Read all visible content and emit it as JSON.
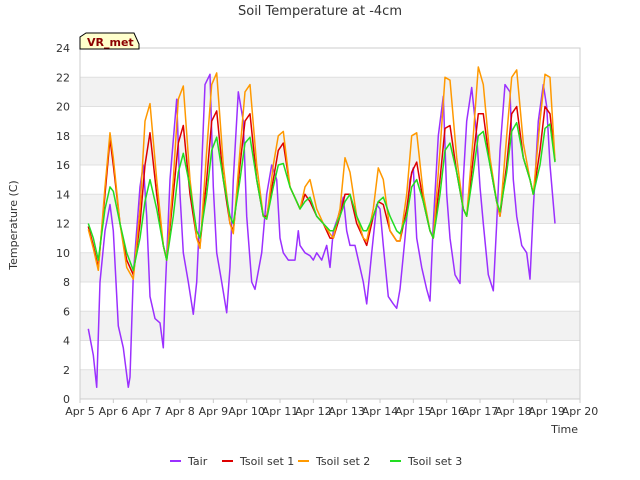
{
  "chart_data": {
    "type": "line",
    "title": "Soil Temperature at -4cm",
    "xlabel": "Time",
    "ylabel": "Temperature (C)",
    "badge": "VR_met",
    "xlim": [
      5,
      20
    ],
    "ylim": [
      0,
      24
    ],
    "x_ticks": [
      5,
      6,
      7,
      8,
      9,
      10,
      11,
      12,
      13,
      14,
      15,
      16,
      17,
      18,
      19,
      20
    ],
    "x_tick_labels": [
      "Apr 5",
      "Apr 6",
      "Apr 7",
      "Apr 8",
      "Apr 9",
      "Apr 10",
      "Apr 11",
      "Apr 12",
      "Apr 13",
      "Apr 14",
      "Apr 15",
      "Apr 16",
      "Apr 17",
      "Apr 18",
      "Apr 19",
      "Apr 20"
    ],
    "y_ticks": [
      0,
      2,
      4,
      6,
      8,
      10,
      12,
      14,
      16,
      18,
      20,
      22,
      24
    ],
    "grid": "horizontal bands",
    "legend_position": "bottom",
    "series": [
      {
        "name": "Tair",
        "color": "#9b30ff",
        "x": [
          5.25,
          5.4,
          5.5,
          5.6,
          5.75,
          5.9,
          6.0,
          6.15,
          6.3,
          6.45,
          6.5,
          6.6,
          6.8,
          6.9,
          7.0,
          7.1,
          7.25,
          7.4,
          7.5,
          7.55,
          7.7,
          7.9,
          8.0,
          8.1,
          8.25,
          8.4,
          8.5,
          8.6,
          8.75,
          8.9,
          9.0,
          9.1,
          9.25,
          9.4,
          9.5,
          9.6,
          9.75,
          9.9,
          10.0,
          10.15,
          10.25,
          10.45,
          10.6,
          10.75,
          10.9,
          11.0,
          11.1,
          11.25,
          11.45,
          11.55,
          11.6,
          11.75,
          11.9,
          12.0,
          12.1,
          12.25,
          12.4,
          12.5,
          12.6,
          12.75,
          12.9,
          13.0,
          13.1,
          13.25,
          13.4,
          13.5,
          13.6,
          13.75,
          13.9,
          14.0,
          14.1,
          14.25,
          14.4,
          14.5,
          14.6,
          14.75,
          14.9,
          15.0,
          15.1,
          15.25,
          15.4,
          15.5,
          15.6,
          15.75,
          15.9,
          16.0,
          16.1,
          16.25,
          16.4,
          16.5,
          16.6,
          16.75,
          16.9,
          17.0,
          17.1,
          17.25,
          17.4,
          17.5,
          17.6,
          17.75,
          17.9,
          18.0,
          18.1,
          18.25,
          18.4,
          18.5,
          18.6,
          18.75,
          18.9,
          19.0,
          19.1,
          19.25
        ],
        "y": [
          4.8,
          3.0,
          0.8,
          8.0,
          11.5,
          13.3,
          11.5,
          5.0,
          3.5,
          0.8,
          1.5,
          8.5,
          14.5,
          16.0,
          12.5,
          7.0,
          5.5,
          5.2,
          3.5,
          7.0,
          15.0,
          20.5,
          14.0,
          10.0,
          8.0,
          5.8,
          8.0,
          13.0,
          21.5,
          22.2,
          14.5,
          10.0,
          8.0,
          5.9,
          9.0,
          15.0,
          21.0,
          19.0,
          12.5,
          8.0,
          7.5,
          10.0,
          14.0,
          16.0,
          15.0,
          11.0,
          10.0,
          9.5,
          9.5,
          11.5,
          10.5,
          10.0,
          9.8,
          9.5,
          10.0,
          9.5,
          10.5,
          9.0,
          11.5,
          12.5,
          13.8,
          11.5,
          10.5,
          10.5,
          9.0,
          8.0,
          6.5,
          10.0,
          13.3,
          13.0,
          10.5,
          7.0,
          6.5,
          6.2,
          7.5,
          11.0,
          15.0,
          15.8,
          11.0,
          9.0,
          7.5,
          6.7,
          12.0,
          18.0,
          20.7,
          14.0,
          11.0,
          8.5,
          7.9,
          15.0,
          19.0,
          21.3,
          18.0,
          14.5,
          12.0,
          8.5,
          7.4,
          12.0,
          17.0,
          21.5,
          21.0,
          15.0,
          12.5,
          10.5,
          10.0,
          8.2,
          13.0,
          19.0,
          21.5,
          20.0,
          16.0,
          12.0
        ]
      },
      {
        "name": "Tsoil set 1",
        "color": "#dd0000",
        "x": [
          5.25,
          5.4,
          5.55,
          5.75,
          5.9,
          6.0,
          6.2,
          6.4,
          6.6,
          6.8,
          6.95,
          7.1,
          7.3,
          7.5,
          7.6,
          7.8,
          7.95,
          8.1,
          8.3,
          8.5,
          8.6,
          8.8,
          8.95,
          9.1,
          9.3,
          9.5,
          9.6,
          9.8,
          9.95,
          10.1,
          10.3,
          10.5,
          10.6,
          10.8,
          10.95,
          11.1,
          11.3,
          11.5,
          11.6,
          11.75,
          11.9,
          12.1,
          12.3,
          12.5,
          12.6,
          12.8,
          12.95,
          13.1,
          13.3,
          13.5,
          13.6,
          13.8,
          13.95,
          14.1,
          14.3,
          14.5,
          14.6,
          14.8,
          14.95,
          15.1,
          15.3,
          15.5,
          15.6,
          15.8,
          15.95,
          16.1,
          16.3,
          16.5,
          16.6,
          16.8,
          16.95,
          17.1,
          17.3,
          17.5,
          17.6,
          17.8,
          17.95,
          18.1,
          18.3,
          18.5,
          18.6,
          18.8,
          18.95,
          19.1,
          19.25
        ],
        "y": [
          11.8,
          10.5,
          9.0,
          14.0,
          17.8,
          16.0,
          12.0,
          9.5,
          8.5,
          12.0,
          16.0,
          18.2,
          14.0,
          10.5,
          9.5,
          14.0,
          17.5,
          18.7,
          14.0,
          11.0,
          10.5,
          15.0,
          19.0,
          19.7,
          15.0,
          12.0,
          11.5,
          16.0,
          19.0,
          19.5,
          15.0,
          12.5,
          12.5,
          15.0,
          17.0,
          17.5,
          14.5,
          13.5,
          13.0,
          14.0,
          13.5,
          12.5,
          12.0,
          11.0,
          11.0,
          12.5,
          14.0,
          14.0,
          12.0,
          11.0,
          10.5,
          12.5,
          13.5,
          13.3,
          11.5,
          10.8,
          10.8,
          13.0,
          15.5,
          16.2,
          13.5,
          11.5,
          11.0,
          15.0,
          18.5,
          18.7,
          15.5,
          13.0,
          12.5,
          16.5,
          19.5,
          19.5,
          16.0,
          13.5,
          12.5,
          16.0,
          19.5,
          20.0,
          16.5,
          15.0,
          14.0,
          17.0,
          20.0,
          19.5,
          16.3
        ]
      },
      {
        "name": "Tsoil set 2",
        "color": "#ff9900",
        "x": [
          5.25,
          5.4,
          5.55,
          5.75,
          5.9,
          6.0,
          6.2,
          6.4,
          6.6,
          6.8,
          6.95,
          7.1,
          7.3,
          7.5,
          7.6,
          7.8,
          7.95,
          8.1,
          8.3,
          8.5,
          8.6,
          8.8,
          8.95,
          9.1,
          9.3,
          9.5,
          9.6,
          9.8,
          9.95,
          10.1,
          10.3,
          10.5,
          10.6,
          10.8,
          10.95,
          11.1,
          11.3,
          11.5,
          11.6,
          11.75,
          11.9,
          12.1,
          12.3,
          12.5,
          12.6,
          12.8,
          12.95,
          13.1,
          13.3,
          13.5,
          13.6,
          13.8,
          13.95,
          14.1,
          14.3,
          14.5,
          14.6,
          14.8,
          14.95,
          15.1,
          15.3,
          15.5,
          15.6,
          15.8,
          15.95,
          16.1,
          16.3,
          16.5,
          16.6,
          16.8,
          16.95,
          17.1,
          17.3,
          17.5,
          17.6,
          17.8,
          17.95,
          18.1,
          18.3,
          18.5,
          18.6,
          18.8,
          18.95,
          19.1,
          19.25
        ],
        "y": [
          11.6,
          10.3,
          8.8,
          14.5,
          18.2,
          16.5,
          12.0,
          9.0,
          8.2,
          13.0,
          19.0,
          20.2,
          15.0,
          10.5,
          9.5,
          15.0,
          20.5,
          21.4,
          15.0,
          11.0,
          10.3,
          17.0,
          21.5,
          22.3,
          16.0,
          12.0,
          11.3,
          17.0,
          21.0,
          21.5,
          16.0,
          12.5,
          12.3,
          16.0,
          18.0,
          18.3,
          14.5,
          13.5,
          13.0,
          14.5,
          15.0,
          13.0,
          12.0,
          11.3,
          11.0,
          13.0,
          16.5,
          15.5,
          12.5,
          11.0,
          10.8,
          13.0,
          15.8,
          15.0,
          11.5,
          10.8,
          10.8,
          14.0,
          18.0,
          18.2,
          14.0,
          11.5,
          11.0,
          17.0,
          22.0,
          21.8,
          16.5,
          13.0,
          12.5,
          18.0,
          22.7,
          21.5,
          16.5,
          13.5,
          12.5,
          18.0,
          22.0,
          22.5,
          17.5,
          15.0,
          14.0,
          19.0,
          22.2,
          22.0,
          16.3
        ]
      },
      {
        "name": "Tsoil set 3",
        "color": "#22dd22",
        "x": [
          5.25,
          5.4,
          5.55,
          5.75,
          5.9,
          6.0,
          6.2,
          6.4,
          6.6,
          6.8,
          6.95,
          7.1,
          7.3,
          7.5,
          7.6,
          7.8,
          7.95,
          8.1,
          8.3,
          8.5,
          8.6,
          8.8,
          8.95,
          9.1,
          9.3,
          9.5,
          9.6,
          9.8,
          9.95,
          10.1,
          10.3,
          10.5,
          10.6,
          10.8,
          10.95,
          11.1,
          11.3,
          11.5,
          11.6,
          11.75,
          11.9,
          12.1,
          12.3,
          12.5,
          12.6,
          12.8,
          12.95,
          13.1,
          13.3,
          13.5,
          13.6,
          13.8,
          13.95,
          14.1,
          14.3,
          14.5,
          14.6,
          14.8,
          14.95,
          15.1,
          15.3,
          15.5,
          15.6,
          15.8,
          15.95,
          16.1,
          16.3,
          16.5,
          16.6,
          16.8,
          16.95,
          17.1,
          17.3,
          17.5,
          17.6,
          17.8,
          17.95,
          18.1,
          18.3,
          18.5,
          18.6,
          18.8,
          18.95,
          19.1,
          19.25
        ],
        "y": [
          12.0,
          11.0,
          9.5,
          13.0,
          14.5,
          14.2,
          12.0,
          10.0,
          8.8,
          11.0,
          13.5,
          15.0,
          13.0,
          10.5,
          9.5,
          12.5,
          15.5,
          16.8,
          14.5,
          11.5,
          11.0,
          14.0,
          17.0,
          17.9,
          15.0,
          12.5,
          12.0,
          15.0,
          17.5,
          17.9,
          15.0,
          12.5,
          12.3,
          14.5,
          16.0,
          16.1,
          14.5,
          13.5,
          13.0,
          13.5,
          13.8,
          12.5,
          12.0,
          11.5,
          11.5,
          12.5,
          13.5,
          14.0,
          12.5,
          11.5,
          11.5,
          12.5,
          13.5,
          13.8,
          12.5,
          11.5,
          11.3,
          12.5,
          14.5,
          15.0,
          13.5,
          11.5,
          11.0,
          14.0,
          17.0,
          17.5,
          15.5,
          13.0,
          12.5,
          15.5,
          18.0,
          18.3,
          16.0,
          13.5,
          12.8,
          15.5,
          18.3,
          18.9,
          16.5,
          15.0,
          14.0,
          16.0,
          18.5,
          18.8,
          16.2
        ]
      }
    ]
  }
}
